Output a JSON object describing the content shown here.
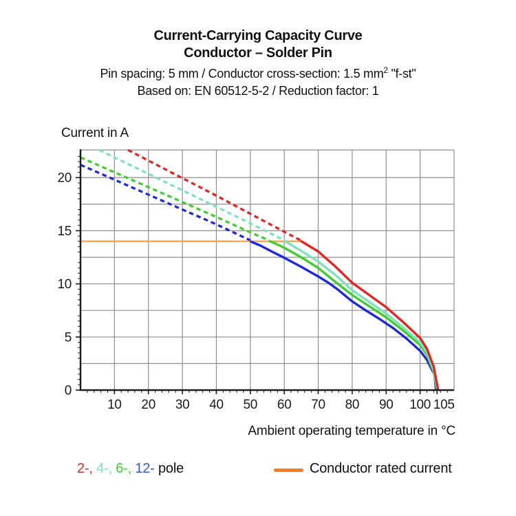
{
  "header": {
    "title_line1": "Current-Carrying Capacity Curve",
    "title_line2": "Conductor – Solder Pin",
    "subtitle1_pre": "Pin spacing: 5 mm / Conductor cross-section: 1.5 mm",
    "subtitle1_sup": "2",
    "subtitle1_post": " \"f-st\"",
    "subtitle_line2": "Based on: EN 60512-5-2 / Reduction factor: 1"
  },
  "chart_data": {
    "type": "line",
    "title": "Current-Carrying Capacity Curve — Conductor – Solder Pin",
    "xlabel": "Ambient operating temperature in °C",
    "ylabel": "Current in A",
    "xlim": [
      0,
      110
    ],
    "ylim": [
      0,
      22.6
    ],
    "grid": true,
    "x_grid_step": 10,
    "y_grid_step": 2.5,
    "x_minor_tick_step": 2,
    "y_minor_tick_step": 0.5,
    "x_ticks_labeled": [
      10,
      20,
      30,
      40,
      50,
      60,
      70,
      80,
      90,
      100,
      105
    ],
    "y_ticks_labeled": [
      0,
      5,
      10,
      15,
      20
    ],
    "grid_color": "#8e8e8e",
    "axis_color": "#1a1a1a",
    "note": "Curves are dashed above the conductor rated current (14 A) and solid below it",
    "series": [
      {
        "name": "12-pole",
        "color": "#1e27e0",
        "dashed_points": [
          [
            0,
            21.2
          ],
          [
            10,
            19.8
          ],
          [
            20,
            18.4
          ],
          [
            30,
            17.0
          ],
          [
            40,
            15.6
          ],
          [
            46,
            14.7
          ],
          [
            50,
            14.1
          ]
        ],
        "solid_points": [
          [
            50,
            14.0
          ],
          [
            53,
            13.6
          ],
          [
            56,
            13.1
          ],
          [
            60,
            12.45
          ],
          [
            65,
            11.6
          ],
          [
            70,
            10.7
          ],
          [
            73,
            10.1
          ],
          [
            76,
            9.4
          ],
          [
            80,
            8.35
          ],
          [
            84,
            7.5
          ],
          [
            88,
            6.7
          ],
          [
            92,
            5.85
          ],
          [
            96,
            4.85
          ],
          [
            100,
            3.7
          ],
          [
            102,
            2.85
          ],
          [
            103.5,
            1.9
          ],
          [
            104.2,
            1.5
          ],
          [
            104.7,
            0
          ]
        ]
      },
      {
        "name": "6-pole",
        "color": "#3ecf2e",
        "dashed_points": [
          [
            0,
            21.9
          ],
          [
            10,
            20.5
          ],
          [
            20,
            19.1
          ],
          [
            30,
            17.7
          ],
          [
            40,
            16.3
          ],
          [
            50,
            14.85
          ],
          [
            55.5,
            14.1
          ]
        ],
        "solid_points": [
          [
            55.5,
            14.05
          ],
          [
            58,
            13.7
          ],
          [
            60,
            13.4
          ],
          [
            65,
            12.5
          ],
          [
            70,
            11.5
          ],
          [
            75,
            10.2
          ],
          [
            80,
            8.95
          ],
          [
            85,
            7.9
          ],
          [
            90,
            6.85
          ],
          [
            95,
            5.6
          ],
          [
            100,
            4.25
          ],
          [
            102,
            3.3
          ],
          [
            104,
            1.7
          ],
          [
            105,
            0
          ]
        ]
      },
      {
        "name": "4-pole",
        "color": "#7de2bd",
        "dashed_points": [
          [
            5.5,
            22.6
          ],
          [
            10,
            21.9
          ],
          [
            20,
            20.35
          ],
          [
            30,
            18.8
          ],
          [
            40,
            17.25
          ],
          [
            50,
            15.7
          ],
          [
            60,
            14.1
          ]
        ],
        "solid_points": [
          [
            60,
            14.05
          ],
          [
            65,
            13.1
          ],
          [
            70,
            12.1
          ],
          [
            75,
            10.85
          ],
          [
            80,
            9.4
          ],
          [
            85,
            8.3
          ],
          [
            90,
            7.2
          ],
          [
            95,
            5.9
          ],
          [
            100,
            4.5
          ],
          [
            102,
            3.55
          ],
          [
            104,
            1.9
          ],
          [
            105.1,
            0
          ]
        ]
      },
      {
        "name": "2-pole",
        "color": "#e8231f",
        "dashed_points": [
          [
            14,
            22.6
          ],
          [
            20,
            21.6
          ],
          [
            30,
            19.95
          ],
          [
            40,
            18.3
          ],
          [
            50,
            16.6
          ],
          [
            60,
            14.9
          ],
          [
            64.8,
            14.1
          ]
        ],
        "solid_points": [
          [
            64.8,
            14.05
          ],
          [
            70,
            13.05
          ],
          [
            75,
            11.65
          ],
          [
            80,
            10.1
          ],
          [
            85,
            8.95
          ],
          [
            90,
            7.8
          ],
          [
            95,
            6.4
          ],
          [
            100,
            4.9
          ],
          [
            102,
            3.9
          ],
          [
            104,
            2.2
          ],
          [
            105.3,
            0
          ]
        ]
      }
    ],
    "rated_current_line": {
      "value": 14,
      "x_start": 0,
      "x_end": 65,
      "color": "#fbaa4d",
      "legend_color": "#f57e20",
      "label": "Conductor rated current"
    },
    "legend_position": "bottom"
  },
  "legend": {
    "pole_items": [
      {
        "label": "2-,",
        "color": "#e8231f"
      },
      {
        "label": "4-,",
        "color": "#7de2bd"
      },
      {
        "label": "6-,",
        "color": "#3ecf2e"
      },
      {
        "label": "12-",
        "color": "#2e57f0"
      }
    ],
    "pole_suffix": "pole",
    "rated_label": "Conductor rated current"
  }
}
